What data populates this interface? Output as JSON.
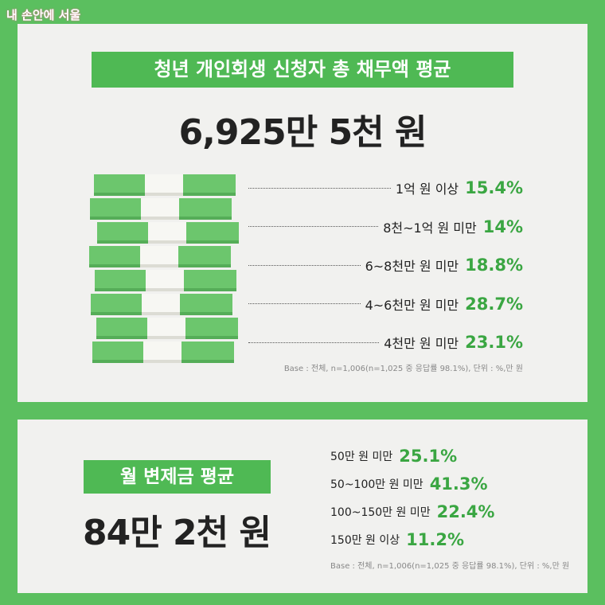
{
  "brand": "내 손안에 서울",
  "debt": {
    "title": "청년 개인회생 신청자 총 채무액 평균",
    "amount": "6,925만 5천 원",
    "rows": [
      {
        "label": "1억 원 이상",
        "value": "15.4%"
      },
      {
        "label": "8천~1억 원 미만",
        "value": "14%"
      },
      {
        "label": "6~8천만 원 미만",
        "value": "18.8%"
      },
      {
        "label": "4~6천만 원 미만",
        "value": "28.7%"
      },
      {
        "label": "4천만 원 미만",
        "value": "23.1%"
      }
    ],
    "note": "Base : 전체, n=1,006(n=1,025 중 응답률 98.1%), 단위 : %,만 원"
  },
  "monthly": {
    "title": "월 변제금 평균",
    "amount": "84만 2천 원",
    "rows": [
      {
        "label": "50만 원 미만",
        "value": "25.1%"
      },
      {
        "label": "50~100만 원 미만",
        "value": "41.3%"
      },
      {
        "label": "100~150만 원 미만",
        "value": "22.4%"
      },
      {
        "label": "150만 원 이상",
        "value": "11.2%"
      }
    ],
    "note": "Base : 전체, n=1,006(n=1,025 중 응답률 98.1%), 단위 : %,만 원"
  }
}
